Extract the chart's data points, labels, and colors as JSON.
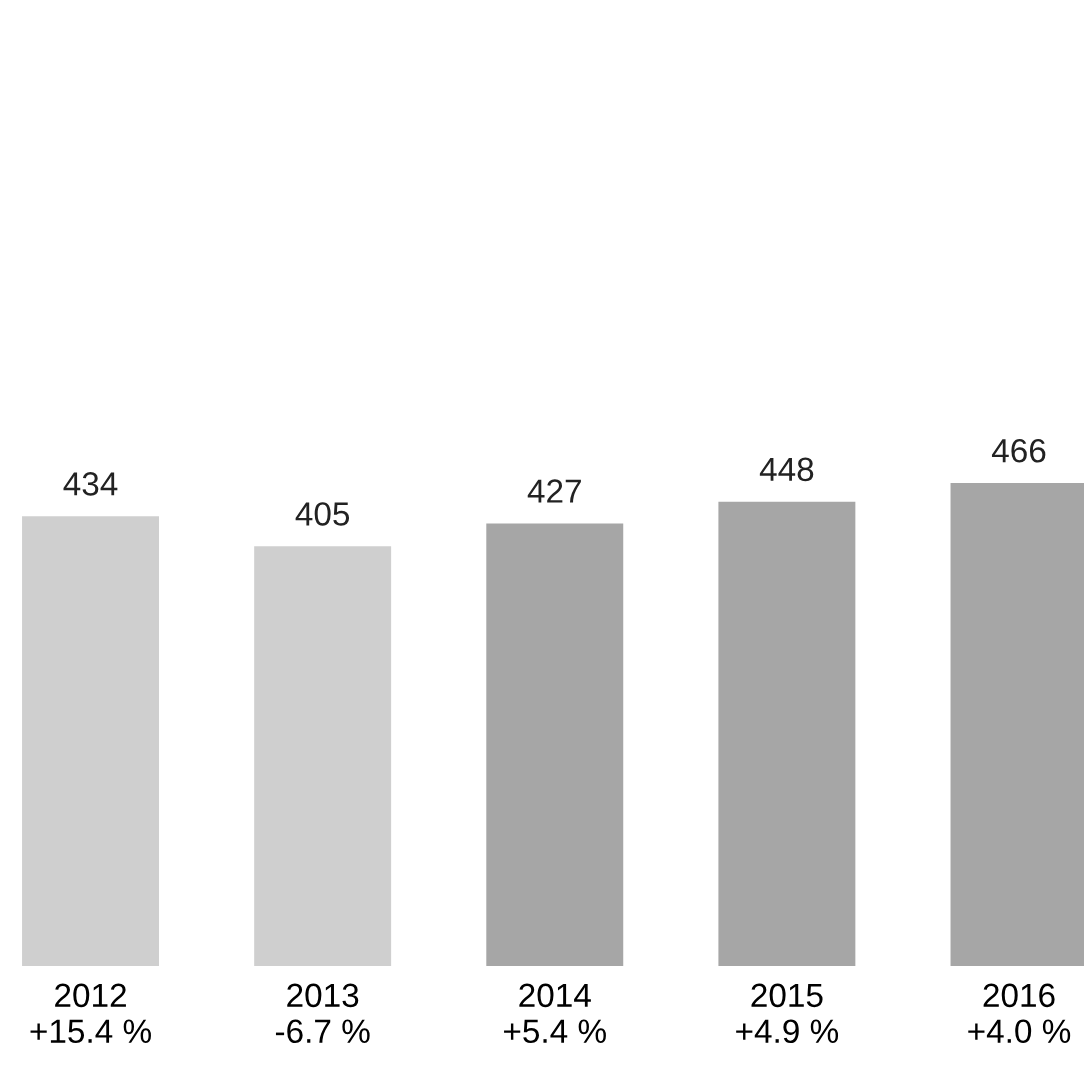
{
  "chart_data": {
    "type": "bar",
    "categories": [
      "2012\n+15.4 %",
      "2013\n-6.7 %",
      "2014\n+5.4 %",
      "2015\n+4.9 %",
      "2016\n+4.0 %"
    ],
    "values": [
      434,
      405,
      427,
      448,
      466
    ],
    "colors": [
      "#cfcfcf",
      "#cfcfcf",
      "#a6a6a6",
      "#a6a6a6",
      "#a6a6a6"
    ],
    "data_labels": true,
    "grid": false,
    "legend": false
  }
}
